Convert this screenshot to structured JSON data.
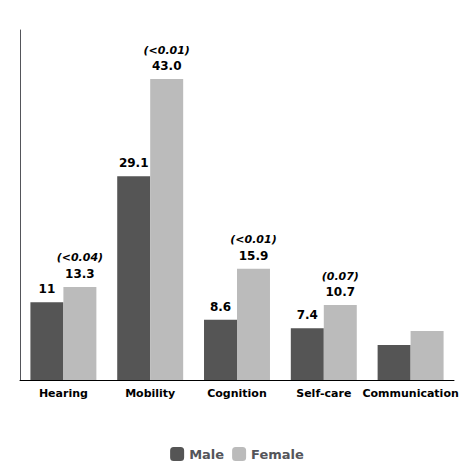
{
  "chart_data": {
    "type": "bar",
    "categories": [
      "Hearing",
      "Mobility",
      "Cognition",
      "Self-care",
      "Communication"
    ],
    "series": [
      {
        "name": "Male",
        "color": "#555555",
        "values": [
          11.1,
          29.1,
          8.6,
          7.4,
          5.0
        ],
        "value_labels": [
          "11",
          "29.1",
          "8.6",
          "7.4",
          null
        ]
      },
      {
        "name": "Female",
        "color": "#bbbbbb",
        "values": [
          13.3,
          43.0,
          15.9,
          10.7,
          7.0
        ],
        "value_labels": [
          "13.3",
          "43.0",
          "15.9",
          "10.7",
          null
        ]
      }
    ],
    "annotations": [
      {
        "text": "(<0.04)",
        "category": "Hearing",
        "series": "Female"
      },
      {
        "text": "(<0.01)",
        "category": "Mobility",
        "series": "Female"
      },
      {
        "text": "(<0.01)",
        "category": "Cognition",
        "series": "Female"
      },
      {
        "text": "(0.07)",
        "category": "Self-care",
        "series": "Female"
      }
    ],
    "ylim": [
      0,
      50
    ],
    "data_labels": true,
    "tick_labels": "x",
    "grid": false,
    "legend": "bottom"
  }
}
